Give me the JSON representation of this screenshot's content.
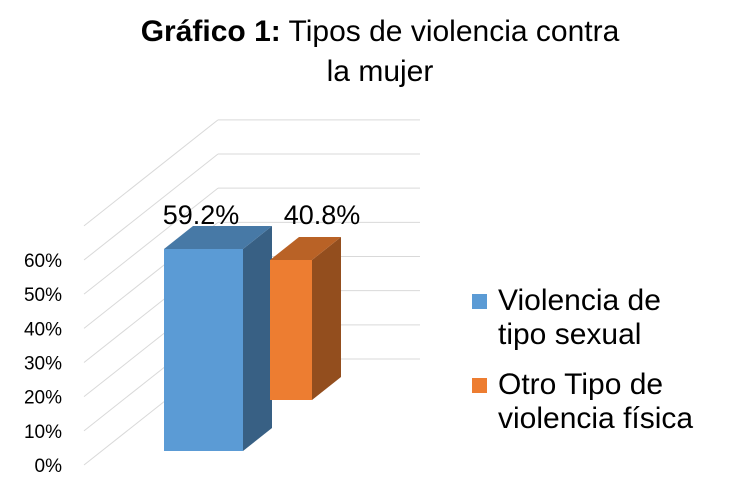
{
  "title": {
    "bold": "Gráfico 1:",
    "rest": " Tipos de violencia contra",
    "line2": "la mujer"
  },
  "chart_data": {
    "type": "bar",
    "categories": [
      "Violencia de tipo sexual",
      "Otro Tipo de violencia física"
    ],
    "values": [
      59.2,
      40.8
    ],
    "data_labels": [
      "59.2%",
      "40.8%"
    ],
    "ylim": [
      0,
      60
    ],
    "yticks": [
      "0%",
      "10%",
      "20%",
      "30%",
      "40%",
      "50%",
      "60%"
    ],
    "grid": true,
    "legend": "right",
    "colors": [
      "#5b9bd5",
      "#ed7d31"
    ]
  },
  "legend": {
    "items": [
      {
        "line1": "Violencia de",
        "line2": "tipo sexual",
        "color": "#5b9bd5"
      },
      {
        "line1": "Otro Tipo de",
        "line2": "violencia física",
        "color": "#ed7d31"
      }
    ]
  }
}
